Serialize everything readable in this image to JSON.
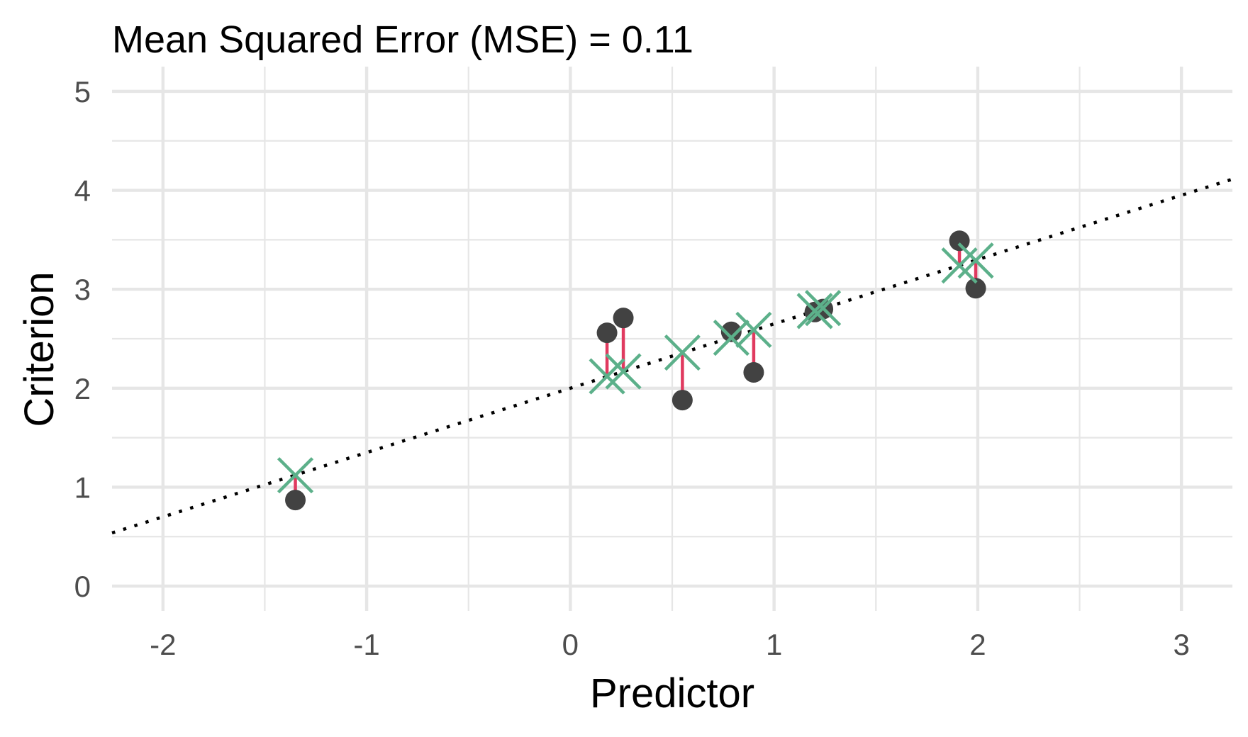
{
  "chart_data": {
    "type": "scatter",
    "title": "Mean Squared Error (MSE) =  0.11",
    "xlabel": "Predictor",
    "ylabel": "Criterion",
    "xlim": [
      -2.25,
      3.25
    ],
    "ylim": [
      -0.25,
      5.25
    ],
    "x_ticks": [
      -2,
      -1,
      0,
      1,
      2,
      3
    ],
    "x_tick_labels": [
      "-2",
      "-1",
      "0",
      "1",
      "2",
      "3"
    ],
    "y_ticks": [
      0,
      1,
      2,
      3,
      4,
      5
    ],
    "y_tick_labels": [
      "0",
      "1",
      "2",
      "3",
      "4",
      "5"
    ],
    "x_minor_ticks": [
      -1.5,
      -0.5,
      0.5,
      1.5,
      2.5
    ],
    "y_minor_ticks": [
      0.5,
      1.5,
      2.5,
      3.5,
      4.5
    ],
    "grid": true,
    "regression_line": {
      "intercept": 2.0,
      "slope": 0.65,
      "style": "dotted"
    },
    "points": [
      {
        "x": -1.35,
        "y": 0.87,
        "predicted": 1.12
      },
      {
        "x": 0.18,
        "y": 2.56,
        "predicted": 2.12
      },
      {
        "x": 0.26,
        "y": 2.71,
        "predicted": 2.17
      },
      {
        "x": 0.55,
        "y": 1.88,
        "predicted": 2.36
      },
      {
        "x": 0.79,
        "y": 2.57,
        "predicted": 2.51
      },
      {
        "x": 0.9,
        "y": 2.16,
        "predicted": 2.59
      },
      {
        "x": 1.2,
        "y": 2.77,
        "predicted": 2.78
      },
      {
        "x": 1.24,
        "y": 2.8,
        "predicted": 2.81
      },
      {
        "x": 1.91,
        "y": 3.49,
        "predicted": 3.24
      },
      {
        "x": 1.99,
        "y": 3.01,
        "predicted": 3.29
      }
    ],
    "colors": {
      "observed": "#424242",
      "predicted": "#5cb08a",
      "residual": "#e03a5f",
      "regression_line": "#000000",
      "grid": "#e6e6e6"
    }
  }
}
